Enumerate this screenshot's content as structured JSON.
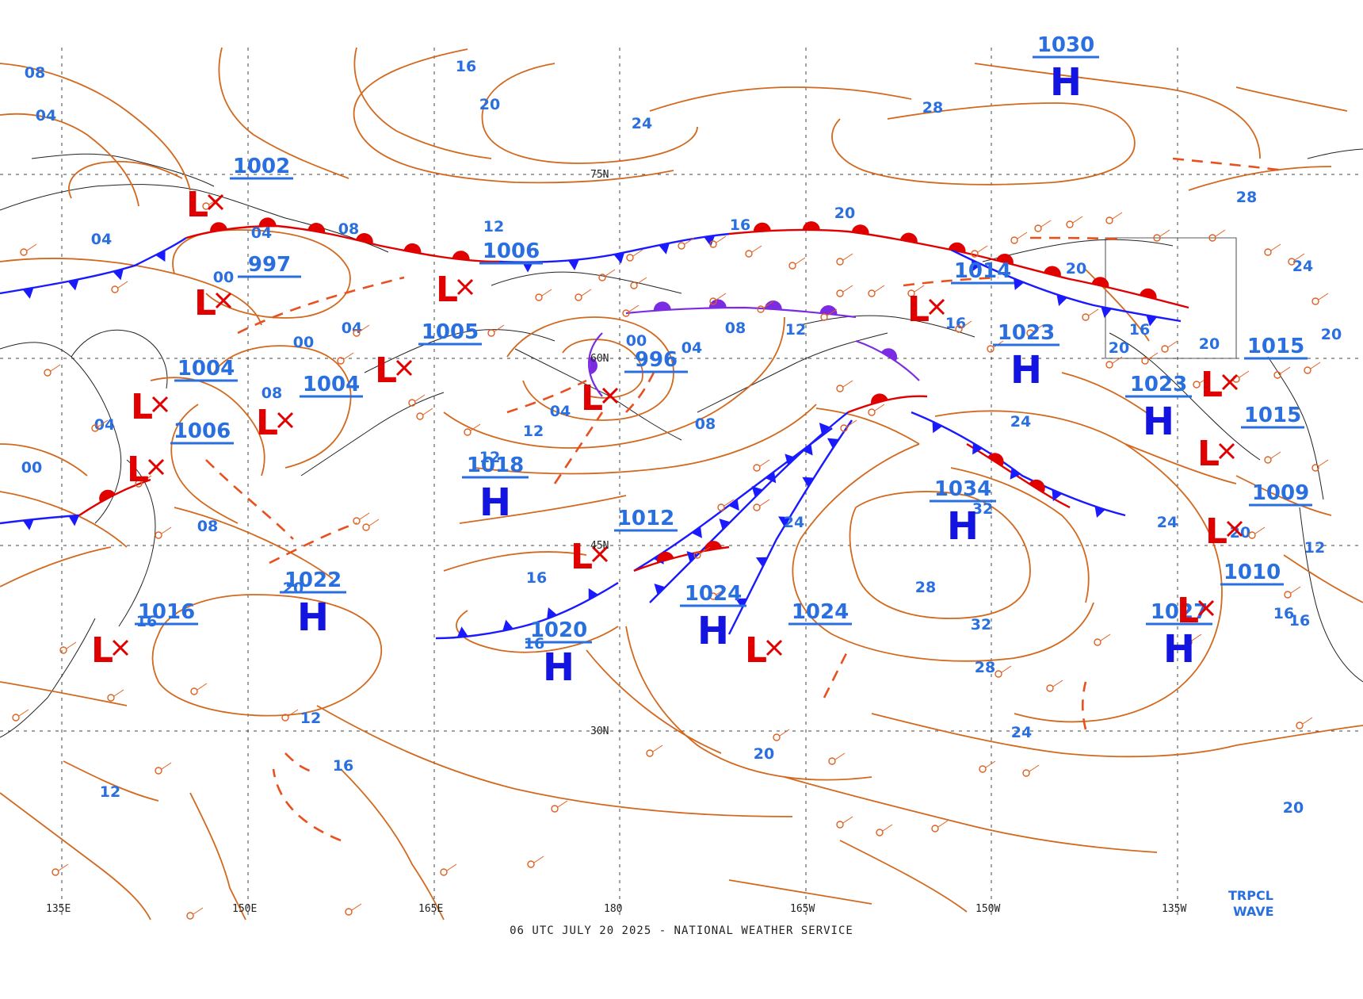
{
  "map": {
    "footer": "06 UTC JULY 20 2025 - NATIONAL WEATHER SERVICE",
    "corner_label": [
      "TRPCL",
      "WAVE"
    ],
    "lon_labels": [
      "135E",
      "150E",
      "165E",
      "180",
      "165W",
      "150W",
      "135W"
    ],
    "lat_labels": [
      "75N",
      "60N",
      "45N",
      "30N"
    ],
    "colors": {
      "isobar": "#d2691e",
      "isobar_label": "#2a6fe0",
      "high": "#1414e0",
      "low": "#e00000",
      "cold_front": "#1a1aff",
      "warm_front": "#e00000",
      "occluded_front": "#7b2be2",
      "trough": "#e8501e"
    },
    "highs": [
      {
        "value": "1030",
        "letter": "H"
      },
      {
        "value": "1034",
        "letter": "H"
      },
      {
        "value": "1023",
        "letter": "H"
      },
      {
        "value": "1022",
        "letter": "H"
      },
      {
        "value": "1018",
        "letter": "H"
      },
      {
        "value": "1020",
        "letter": "H"
      },
      {
        "value": "1024",
        "letter": "H"
      },
      {
        "value": "1027",
        "letter": "H"
      },
      {
        "value": "1023",
        "letter": "H"
      }
    ],
    "lows": [
      {
        "value": "1002",
        "letter": "L"
      },
      {
        "value": "997",
        "letter": "L"
      },
      {
        "value": "1004",
        "letter": "L"
      },
      {
        "value": "1006",
        "letter": "L"
      },
      {
        "value": "1004",
        "letter": "L"
      },
      {
        "value": "1005",
        "letter": "L"
      },
      {
        "value": "1006",
        "letter": "L"
      },
      {
        "value": "996",
        "letter": "L"
      },
      {
        "value": "1012",
        "letter": "L"
      },
      {
        "value": "1024",
        "letter": "L"
      },
      {
        "value": "1014",
        "letter": "L"
      },
      {
        "value": "1015",
        "letter": "L"
      },
      {
        "value": "1015",
        "letter": "L"
      },
      {
        "value": "1009",
        "letter": "L"
      },
      {
        "value": "1010",
        "letter": "L"
      },
      {
        "value": "1016",
        "letter": "L"
      }
    ],
    "isobar_labels": [
      "08",
      "04",
      "04",
      "04",
      "00",
      "08",
      "00",
      "04",
      "08",
      "04",
      "00",
      "08",
      "12",
      "16",
      "20",
      "24",
      "28",
      "28",
      "24",
      "20",
      "24",
      "28",
      "32",
      "32",
      "28",
      "24",
      "20",
      "16",
      "16",
      "16",
      "16",
      "16",
      "20",
      "12",
      "16",
      "20",
      "20",
      "12",
      "24",
      "16",
      "20",
      "20",
      "24",
      "20",
      "16",
      "12",
      "20",
      "12",
      "16",
      "00",
      "04",
      "08",
      "12",
      "08",
      "04",
      "12"
    ]
  }
}
